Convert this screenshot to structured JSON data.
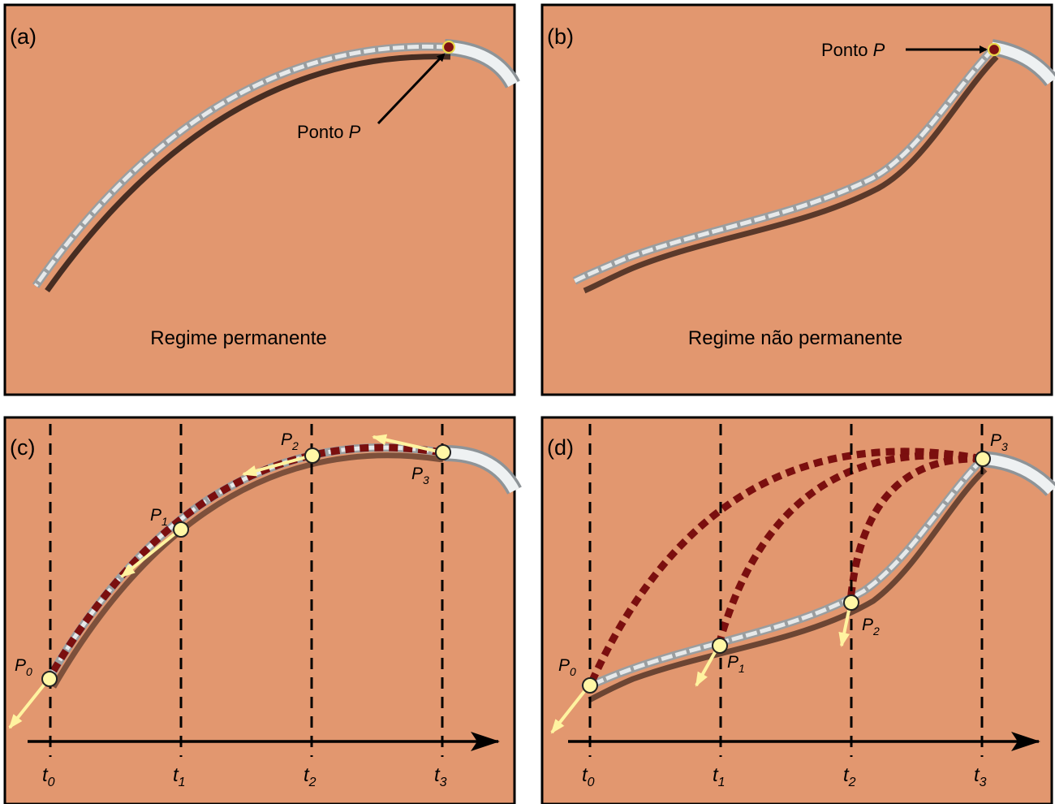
{
  "panels": {
    "a": {
      "tag": "(a)",
      "caption": "Regime permanente",
      "point_label": "Ponto",
      "point_var": "P"
    },
    "b": {
      "tag": "(b)",
      "caption": "Regime não permanente",
      "point_label": "Ponto",
      "point_var": "P"
    },
    "c": {
      "tag": "(c)",
      "times": [
        "t",
        "t",
        "t",
        "t"
      ],
      "time_subs": [
        "0",
        "1",
        "2",
        "3"
      ],
      "points": [
        "P",
        "P",
        "P",
        "P"
      ],
      "point_subs": [
        "0",
        "1",
        "2",
        "3"
      ]
    },
    "d": {
      "tag": "(d)",
      "times": [
        "t",
        "t",
        "t",
        "t"
      ],
      "time_subs": [
        "0",
        "1",
        "2",
        "3"
      ],
      "points": [
        "P",
        "P",
        "P",
        "P"
      ],
      "point_subs": [
        "0",
        "1",
        "2",
        "3"
      ]
    }
  },
  "colors": {
    "panel_background": "#E2976F",
    "trajectory": "#7B0F0F",
    "point_marker": "#FFF7A6",
    "velocity_arrow": "#FFF3A0",
    "stream": "#D6D9DB"
  }
}
